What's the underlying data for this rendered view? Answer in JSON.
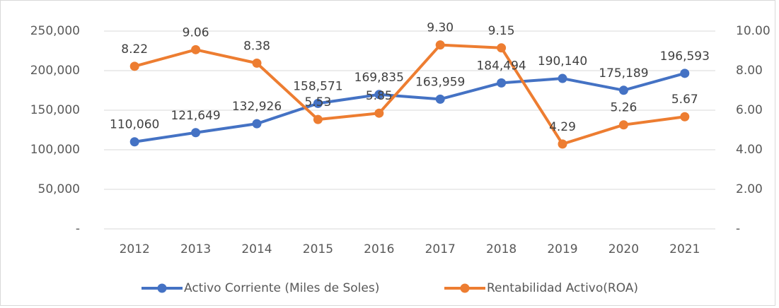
{
  "chart_data": {
    "type": "line",
    "categories": [
      "2012",
      "2013",
      "2014",
      "2015",
      "2016",
      "2017",
      "2018",
      "2019",
      "2020",
      "2021"
    ],
    "series": [
      {
        "name": "Activo Corriente (Miles de Soles)",
        "color": "#4472c4",
        "axis": "y",
        "values": [
          110060,
          121649,
          132926,
          158571,
          169835,
          163959,
          184494,
          190140,
          175189,
          196593
        ],
        "value_labels": [
          "110,060",
          "121,649",
          "132,926",
          "158,571",
          "169,835",
          "163,959",
          "184,494",
          "190,140",
          "175,189",
          "196,593"
        ]
      },
      {
        "name": "Rentabilidad Activo(ROA)",
        "color": "#ed7d31",
        "axis": "y2",
        "values": [
          8.22,
          9.06,
          8.38,
          5.53,
          5.85,
          9.3,
          9.15,
          4.29,
          5.26,
          5.67
        ],
        "value_labels": [
          "8.22",
          "9.06",
          "8.38",
          "5.53",
          "5.85",
          "9.30",
          "9.15",
          "4.29",
          "5.26",
          "5.67"
        ]
      }
    ],
    "ylim": [
      0,
      250000
    ],
    "yticks": [
      {
        "value": 0,
        "label": "-"
      },
      {
        "value": 50000,
        "label": "50,000"
      },
      {
        "value": 100000,
        "label": "100,000"
      },
      {
        "value": 150000,
        "label": "150,000"
      },
      {
        "value": 200000,
        "label": "200,000"
      },
      {
        "value": 250000,
        "label": "250,000"
      }
    ],
    "y2lim": [
      0,
      10
    ],
    "y2ticks": [
      {
        "value": 0,
        "label": "-"
      },
      {
        "value": 2,
        "label": "2.00"
      },
      {
        "value": 4,
        "label": "4.00"
      },
      {
        "value": 6,
        "label": "6.00"
      },
      {
        "value": 8,
        "label": "8.00"
      },
      {
        "value": 10,
        "label": "10.00"
      }
    ],
    "grid": true,
    "legend": "bottom"
  }
}
